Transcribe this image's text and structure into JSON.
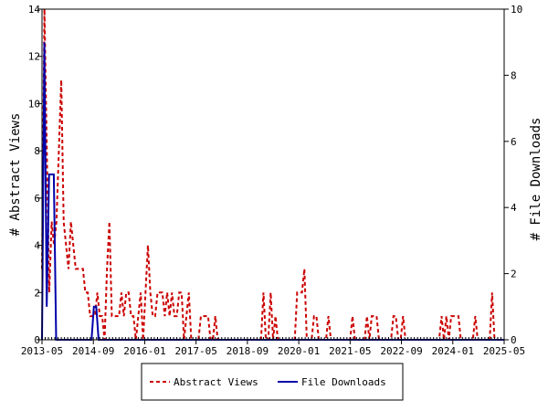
{
  "chart_data": {
    "type": "line",
    "ylabel_left": "# Abstract Views",
    "ylabel_right": "# File Downloads",
    "ylim_left": [
      0,
      14
    ],
    "ylim_right": [
      0,
      10
    ],
    "yticks_left": [
      "0",
      "2",
      "4",
      "6",
      "8",
      "10",
      "12",
      "14"
    ],
    "yticks_right": [
      "0",
      "2",
      "4",
      "6",
      "8",
      "10"
    ],
    "xticks": [
      "2013-05",
      "2014-09",
      "2016-01",
      "2017-05",
      "2018-09",
      "2020-01",
      "2021-05",
      "2022-09",
      "2024-01",
      "2025-05"
    ],
    "x_range": [
      "2013-05",
      "2025-05"
    ],
    "grid": false,
    "legend_position": "bottom",
    "series": [
      {
        "name": "Abstract Views",
        "axis": "left",
        "color": "#cc0000",
        "style": "dashed",
        "values": [
          3,
          14,
          8,
          2,
          5,
          4,
          5,
          8,
          11,
          5,
          4,
          3,
          5,
          4,
          3,
          3,
          3,
          3,
          2,
          2,
          1,
          1,
          1,
          2,
          1,
          1,
          0,
          3,
          5,
          1,
          1,
          1,
          1,
          2,
          1,
          2,
          2,
          1,
          1,
          0,
          1,
          2,
          0,
          2,
          4,
          2,
          1,
          1,
          2,
          2,
          2,
          1,
          2,
          1,
          2,
          1,
          1,
          2,
          2,
          0,
          1,
          2,
          0,
          0,
          0,
          0,
          1,
          1,
          1,
          1,
          0,
          0,
          1,
          0,
          0,
          0,
          0,
          0,
          0,
          0,
          0,
          0,
          0,
          0,
          0,
          0,
          0,
          0,
          0,
          0,
          0,
          0,
          2,
          0,
          0,
          2,
          0,
          1,
          0,
          0,
          0,
          0,
          0,
          0,
          0,
          0,
          2,
          2,
          2,
          3,
          0,
          0,
          0,
          1,
          1,
          0,
          0,
          0,
          0,
          1,
          0,
          0,
          0,
          0,
          0,
          0,
          0,
          0,
          0,
          1,
          0,
          0,
          0,
          0,
          0,
          1,
          0,
          1,
          1,
          1,
          0,
          0,
          0,
          0,
          0,
          0,
          1,
          1,
          0,
          0,
          1,
          0,
          0,
          0,
          0,
          0,
          0,
          0,
          0,
          0,
          0,
          0,
          0,
          0,
          0,
          0,
          1,
          0,
          1,
          0,
          1,
          1,
          1,
          1,
          0,
          0,
          0,
          0,
          0,
          0,
          1,
          0,
          0,
          0,
          0,
          0,
          0,
          2,
          0,
          0,
          0,
          0,
          0
        ]
      },
      {
        "name": "File Downloads",
        "axis": "right",
        "color": "#0000aa",
        "style": "solid",
        "values": [
          0,
          9,
          1,
          5,
          5,
          5,
          0,
          0,
          0,
          0,
          0,
          0,
          0,
          0,
          0,
          0,
          0,
          0,
          0,
          0,
          0,
          0,
          1,
          1,
          0,
          0,
          0,
          0,
          0,
          0,
          0,
          0,
          0,
          0,
          0,
          0,
          0,
          0,
          0,
          0,
          0,
          0,
          0,
          0,
          0,
          0,
          0,
          0,
          0,
          0,
          0,
          0,
          0,
          0,
          0,
          0,
          0,
          0,
          0,
          0,
          0,
          0,
          0,
          0,
          0,
          0,
          0,
          0,
          0,
          0,
          0,
          0,
          0,
          0,
          0,
          0,
          0,
          0,
          0,
          0,
          0,
          0,
          0,
          0,
          0,
          0,
          0,
          0,
          0,
          0,
          0,
          0,
          0,
          0,
          0,
          0,
          0,
          0,
          0,
          0,
          0,
          0,
          0,
          0,
          0,
          0,
          0,
          0,
          0,
          0,
          0,
          0,
          0,
          0,
          0,
          0,
          0,
          0,
          0,
          0,
          0,
          0,
          0,
          0,
          0,
          0,
          0,
          0,
          0,
          0,
          0,
          0,
          0,
          0,
          0,
          0,
          0,
          0,
          0,
          0,
          0,
          0,
          0,
          0,
          0,
          0,
          0,
          0,
          0,
          0,
          0,
          0,
          0,
          0,
          0,
          0,
          0,
          0,
          0,
          0,
          0,
          0,
          0,
          0,
          0,
          0,
          0,
          0,
          0,
          0,
          0,
          0,
          0,
          0,
          0,
          0,
          0,
          0,
          0,
          0,
          0,
          0,
          0,
          0,
          0,
          0,
          0,
          0,
          0,
          0,
          0,
          0,
          0,
          0,
          0,
          0,
          0
        ]
      }
    ]
  },
  "legend": {
    "views_label": "Abstract Views",
    "downloads_label": "File Downloads"
  }
}
